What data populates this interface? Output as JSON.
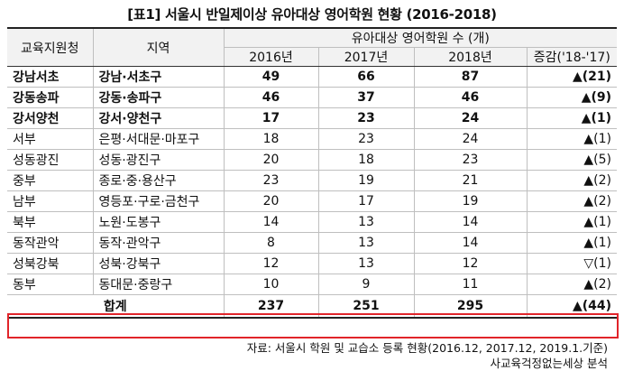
{
  "title": "[표1] 서울시 반일제이상 유아대상 영어학원 현황 (2016-2018)",
  "headers": {
    "education_office": "교육지원청",
    "district": "지역",
    "group": "유아대상 영어학원 수 (개)",
    "y2016": "2016년",
    "y2017": "2017년",
    "y2018": "2018년",
    "change": "증감('18-'17)"
  },
  "rows": [
    {
      "office": "강남서초",
      "district": "강남·서초구",
      "y2016": "49",
      "y2017": "66",
      "y2018": "87",
      "change": "▲(21)",
      "bold": true
    },
    {
      "office": "강동송파",
      "district": "강동·송파구",
      "y2016": "46",
      "y2017": "37",
      "y2018": "46",
      "change": "▲(9)",
      "bold": true
    },
    {
      "office": "강서양천",
      "district": "강서·양천구",
      "y2016": "17",
      "y2017": "23",
      "y2018": "24",
      "change": "▲(1)",
      "bold": true
    },
    {
      "office": "서부",
      "district": "은평·서대문·마포구",
      "y2016": "18",
      "y2017": "23",
      "y2018": "24",
      "change": "▲(1)",
      "bold": false
    },
    {
      "office": "성동광진",
      "district": "성동·광진구",
      "y2016": "20",
      "y2017": "18",
      "y2018": "23",
      "change": "▲(5)",
      "bold": false
    },
    {
      "office": "중부",
      "district": "종로·중·용산구",
      "y2016": "23",
      "y2017": "19",
      "y2018": "21",
      "change": "▲(2)",
      "bold": false
    },
    {
      "office": "남부",
      "district": "영등포·구로·금천구",
      "y2016": "20",
      "y2017": "17",
      "y2018": "19",
      "change": "▲(2)",
      "bold": false
    },
    {
      "office": "북부",
      "district": "노원·도봉구",
      "y2016": "14",
      "y2017": "13",
      "y2018": "14",
      "change": "▲(1)",
      "bold": false
    },
    {
      "office": "동작관악",
      "district": "동작·관악구",
      "y2016": "8",
      "y2017": "13",
      "y2018": "14",
      "change": "▲(1)",
      "bold": false
    },
    {
      "office": "성북강북",
      "district": "성북·강북구",
      "y2016": "12",
      "y2017": "13",
      "y2018": "12",
      "change": "▽(1)",
      "bold": false
    },
    {
      "office": "동부",
      "district": "동대문·중랑구",
      "y2016": "10",
      "y2017": "9",
      "y2018": "11",
      "change": "▲(2)",
      "bold": false
    }
  ],
  "total": {
    "label": "합계",
    "y2016": "237",
    "y2017": "251",
    "y2018": "295",
    "change": "▲(44)"
  },
  "source": "자료: 서울시 학원 및 교습소 등록 현황(2016.12, 2017.12, 2019.1.기준)",
  "organization": "사교육걱정없는세상 분석",
  "colors": {
    "highlight_border": "#e1242a",
    "header_bg": "#f2f2f2"
  }
}
